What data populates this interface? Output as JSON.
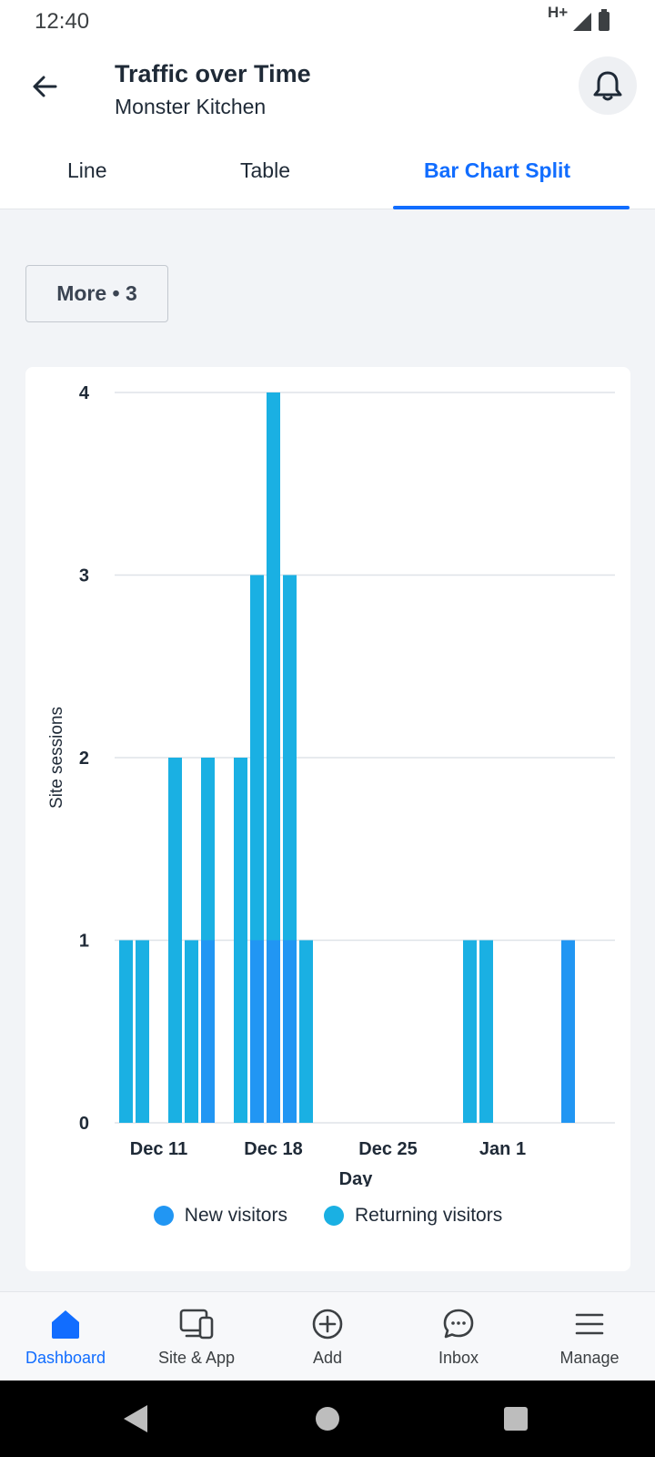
{
  "status": {
    "time": "12:40",
    "network": "H+"
  },
  "header": {
    "title": "Traffic over Time",
    "subtitle": "Monster Kitchen"
  },
  "tabs": [
    {
      "label": "Line",
      "active": false
    },
    {
      "label": "Table",
      "active": false
    },
    {
      "label": "Bar Chart Split",
      "active": true
    }
  ],
  "filter": {
    "more_label": "More • 3"
  },
  "colors": {
    "accent": "#116dff",
    "new_visitors": "#2196f3",
    "returning_visitors": "#1ab0e3"
  },
  "chart_data": {
    "type": "bar",
    "stacked": true,
    "xlabel": "Day",
    "ylabel": "Site sessions",
    "ylim": [
      0,
      4
    ],
    "yticks": [
      0,
      1,
      2,
      3,
      4
    ],
    "x_tick_labels": [
      "Dec 11",
      "Dec 18",
      "Dec 25",
      "Jan 1"
    ],
    "categories": [
      "Dec 9",
      "Dec 10",
      "Dec 11",
      "Dec 12",
      "Dec 13",
      "Dec 14",
      "Dec 15",
      "Dec 16",
      "Dec 17",
      "Dec 18",
      "Dec 19",
      "Dec 20",
      "Dec 21",
      "Dec 22",
      "Dec 23",
      "Dec 24",
      "Dec 25",
      "Dec 26",
      "Dec 27",
      "Dec 28",
      "Dec 29",
      "Dec 30",
      "Dec 31",
      "Jan 1",
      "Jan 2",
      "Jan 3",
      "Jan 4",
      "Jan 5",
      "Jan 6"
    ],
    "series": [
      {
        "name": "New visitors",
        "values": [
          0,
          0,
          0,
          0,
          0,
          1,
          0,
          0,
          1,
          1,
          1,
          0,
          0,
          0,
          0,
          0,
          0,
          0,
          0,
          0,
          0,
          0,
          0,
          0,
          0,
          0,
          0,
          1,
          0
        ]
      },
      {
        "name": "Returning visitors",
        "values": [
          1,
          1,
          0,
          2,
          1,
          1,
          0,
          2,
          2,
          3,
          2,
          1,
          0,
          0,
          0,
          0,
          0,
          0,
          0,
          0,
          0,
          1,
          1,
          0,
          0,
          0,
          0,
          0,
          0
        ]
      }
    ],
    "grid": true,
    "legend": "bottom"
  },
  "bottom_nav": [
    {
      "label": "Dashboard",
      "icon": "home-icon",
      "active": true
    },
    {
      "label": "Site & App",
      "icon": "devices-icon",
      "active": false
    },
    {
      "label": "Add",
      "icon": "add-circle-icon",
      "active": false
    },
    {
      "label": "Inbox",
      "icon": "chat-bubble-icon",
      "active": false
    },
    {
      "label": "Manage",
      "icon": "menu-icon",
      "active": false
    }
  ]
}
